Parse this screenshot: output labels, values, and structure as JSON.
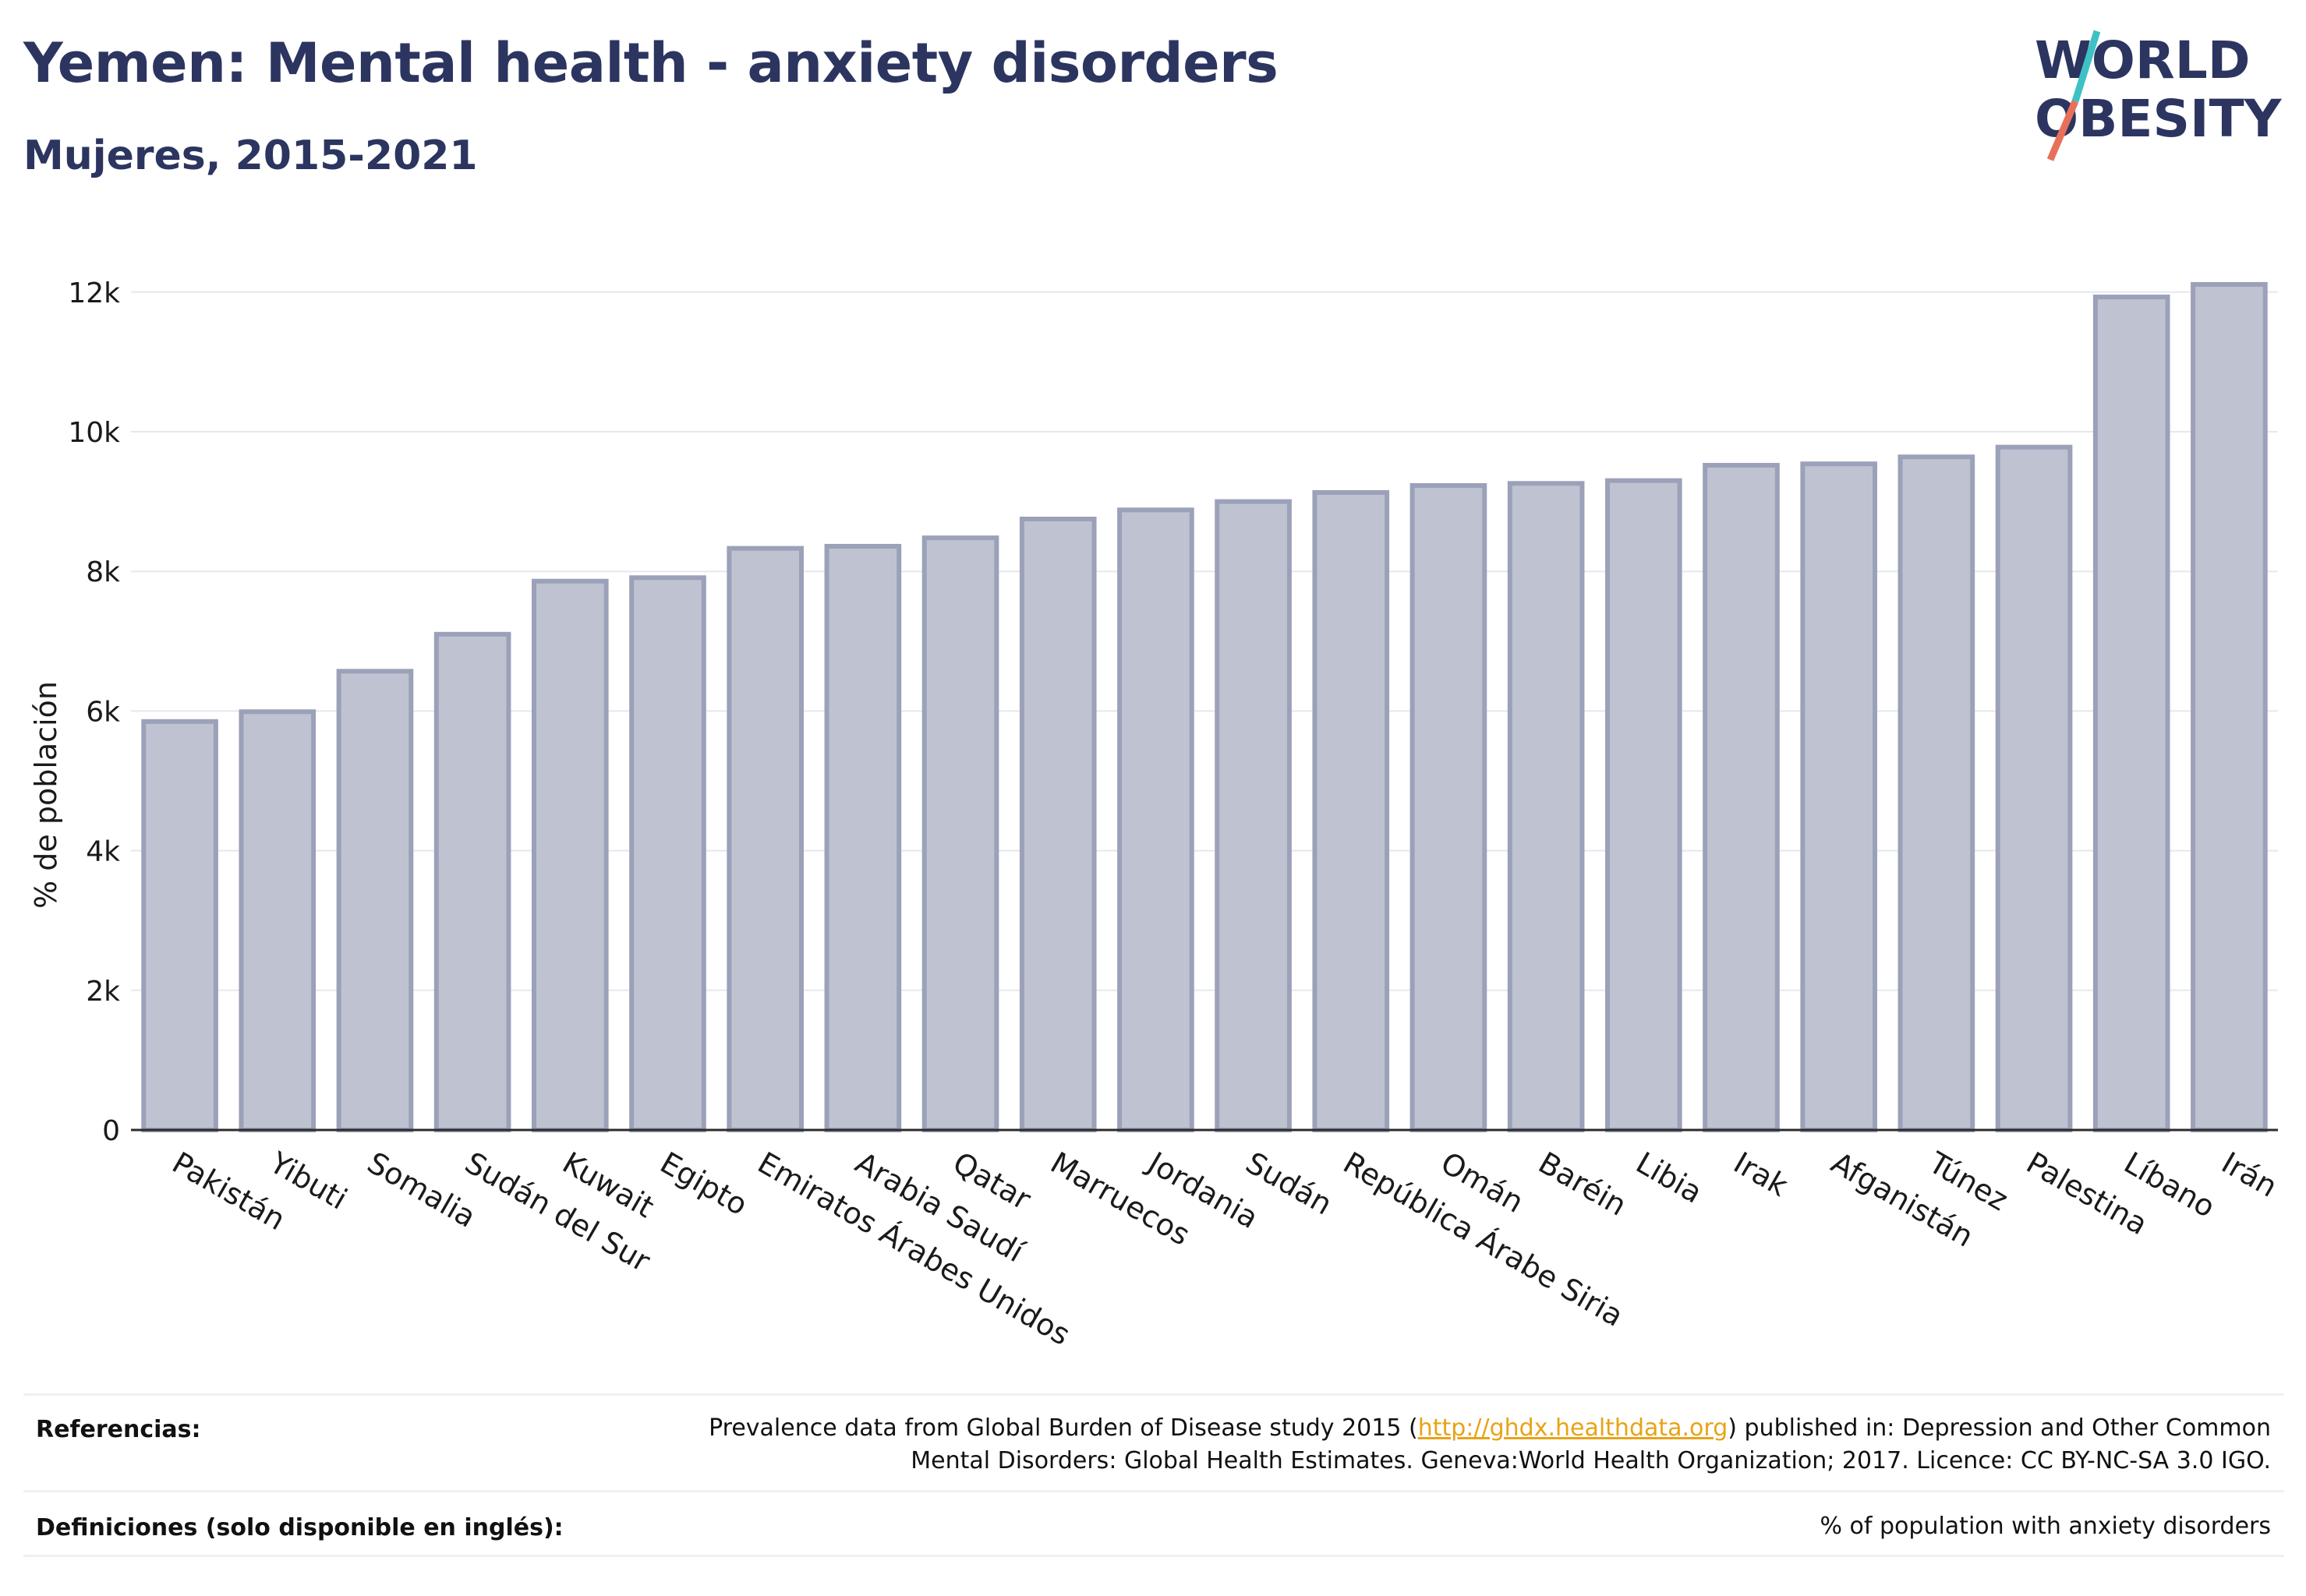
{
  "header": {
    "title": "Yemen: Mental health - anxiety disorders",
    "subtitle": "Mujeres, 2015-2021"
  },
  "logo": {
    "line1": "WORLD",
    "line2": "OBESITY",
    "colors": {
      "text": "#2c3560",
      "slash_top": "#3ec1c4",
      "slash_bottom": "#e8705a"
    }
  },
  "chart_data": {
    "type": "bar",
    "categories": [
      "Pakistán",
      "Yibuti",
      "Somalia",
      "Sudán del Sur",
      "Kuwait",
      "Egipto",
      "Emiratos Árabes Unidos",
      "Arabia Saudí",
      "Qatar",
      "Marruecos",
      "Jordania",
      "Sudán",
      "República Árabe Siria",
      "Omán",
      "Baréin",
      "Libia",
      "Irak",
      "Afganistán",
      "Túnez",
      "Palestina",
      "Líbano",
      "Irán"
    ],
    "values": [
      5850,
      5990,
      6570,
      7100,
      7860,
      7910,
      8330,
      8360,
      8480,
      8750,
      8880,
      9000,
      9130,
      9230,
      9260,
      9300,
      9520,
      9540,
      9640,
      9780,
      11930,
      12110
    ],
    "title": "Yemen: Mental health - anxiety disorders",
    "subtitle": "Mujeres, 2015-2021",
    "xlabel": "",
    "ylabel": "% de población",
    "ylim": [
      0,
      12500
    ],
    "yticks": [
      0,
      2000,
      4000,
      6000,
      8000,
      10000,
      12000
    ],
    "ytick_labels": [
      "0",
      "2k",
      "4k",
      "6k",
      "8k",
      "10k",
      "12k"
    ],
    "grid": true,
    "legend": "none",
    "colors": {
      "bar_fill": "#bfc3d1",
      "bar_stroke": "#9ba1b8",
      "grid": "#e6e8ef",
      "axis": "#2c2c2c"
    }
  },
  "footer": {
    "references_label": "Referencias:",
    "references_pre": "Prevalence data from Global Burden of Disease study 2015 (",
    "references_link": "http://ghdx.healthdata.org",
    "references_post": ") published in: Depression and Other Common",
    "references_line2": "Mental Disorders: Global Health Estimates. Geneva:World Health Organization; 2017. Licence: CC BY-NC-SA 3.0 IGO.",
    "definitions_label": "Definiciones (solo disponible en inglés):",
    "definitions_text": "% of population with anxiety disorders"
  }
}
